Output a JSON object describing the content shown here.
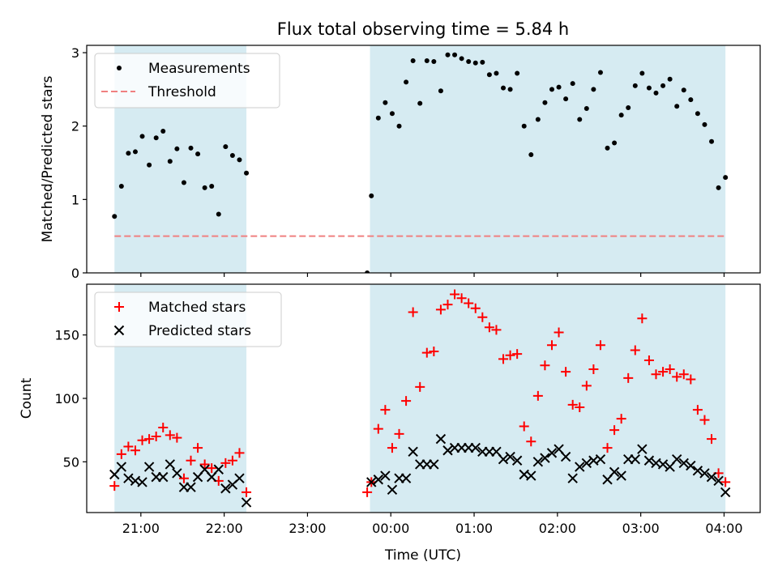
{
  "figure": {
    "title": "Flux total observing time = 5.84 h",
    "xlabel": "Time (UTC)"
  },
  "colors": {
    "shade": "#add8e6",
    "measure": "#000000",
    "threshold": "#f08080",
    "matched": "#ff0000",
    "predicted": "#000000"
  },
  "chart_data": [
    {
      "type": "scatter",
      "ylabel": "Matched/Predicted stars",
      "xlim": [
        "20:21",
        "04:26"
      ],
      "ylim": [
        0,
        3.1
      ],
      "yticks": [
        0,
        1,
        2,
        3
      ],
      "xticks": [
        "21:00",
        "22:00",
        "23:00",
        "00:00",
        "01:00",
        "02:00",
        "03:00",
        "04:00"
      ],
      "xtick_labels_shown": false,
      "legend": {
        "placement": "upper-left",
        "entries": [
          "Measurements",
          "Threshold"
        ]
      },
      "shaded_intervals": [
        [
          "20:41",
          "22:16"
        ],
        [
          "23:45",
          "04:01"
        ]
      ],
      "threshold": {
        "name": "Threshold",
        "y": 0.5,
        "x_range": [
          "20:41",
          "04:01"
        ]
      },
      "series": [
        {
          "name": "Measurements",
          "marker": "dot",
          "x": [
            "20:41",
            "20:46",
            "20:51",
            "20:56",
            "21:01",
            "21:06",
            "21:11",
            "21:16",
            "21:21",
            "21:26",
            "21:31",
            "21:36",
            "21:41",
            "21:46",
            "21:51",
            "21:56",
            "22:01",
            "22:06",
            "22:11",
            "22:16",
            "23:43",
            "23:46",
            "23:51",
            "23:56",
            "24:01",
            "24:06",
            "24:11",
            "24:16",
            "24:21",
            "24:26",
            "24:31",
            "24:36",
            "24:41",
            "24:46",
            "24:51",
            "24:56",
            "25:01",
            "25:06",
            "25:11",
            "25:16",
            "25:21",
            "25:26",
            "25:31",
            "25:36",
            "25:41",
            "25:46",
            "25:51",
            "25:56",
            "26:01",
            "26:06",
            "26:11",
            "26:16",
            "26:21",
            "26:26",
            "26:31",
            "26:36",
            "26:41",
            "26:46",
            "26:51",
            "26:56",
            "27:01",
            "27:06",
            "27:11",
            "27:16",
            "27:21",
            "27:26",
            "27:31",
            "27:36",
            "27:41",
            "27:46",
            "27:51",
            "27:56",
            "28:01"
          ],
          "y": [
            0.77,
            1.18,
            1.63,
            1.65,
            1.86,
            1.47,
            1.84,
            1.93,
            1.52,
            1.69,
            1.23,
            1.7,
            1.62,
            1.16,
            1.18,
            0.8,
            1.72,
            1.6,
            1.54,
            1.36,
            0.0,
            1.05,
            2.11,
            2.32,
            2.17,
            2.0,
            2.6,
            2.89,
            2.31,
            2.89,
            2.88,
            2.48,
            2.97,
            2.97,
            2.92,
            2.88,
            2.86,
            2.87,
            2.7,
            2.72,
            2.52,
            2.5,
            2.72,
            2.0,
            1.61,
            2.09,
            2.32,
            2.5,
            2.53,
            2.37,
            2.58,
            2.09,
            2.24,
            2.5,
            2.73,
            1.7,
            1.77,
            2.15,
            2.25,
            2.55,
            2.72,
            2.52,
            2.45,
            2.55,
            2.64,
            2.27,
            2.49,
            2.36,
            2.17,
            2.02,
            1.79,
            1.16,
            1.3
          ]
        }
      ]
    },
    {
      "type": "scatter",
      "ylabel": "Count",
      "xlim": [
        "20:21",
        "04:26"
      ],
      "ylim": [
        10,
        190
      ],
      "yticks": [
        50,
        100,
        150
      ],
      "xticks": [
        "21:00",
        "22:00",
        "23:00",
        "00:00",
        "01:00",
        "02:00",
        "03:00",
        "04:00"
      ],
      "legend": {
        "placement": "upper-left",
        "entries": [
          "Matched stars",
          "Predicted stars"
        ]
      },
      "shaded_intervals": [
        [
          "20:41",
          "22:16"
        ],
        [
          "23:45",
          "04:01"
        ]
      ],
      "series": [
        {
          "name": "Matched stars",
          "marker": "plus",
          "x": [
            "20:41",
            "20:46",
            "20:51",
            "20:56",
            "21:01",
            "21:06",
            "21:11",
            "21:16",
            "21:21",
            "21:26",
            "21:31",
            "21:36",
            "21:41",
            "21:46",
            "21:51",
            "21:56",
            "22:01",
            "22:06",
            "22:11",
            "22:16",
            "23:43",
            "23:46",
            "23:51",
            "23:56",
            "24:01",
            "24:06",
            "24:11",
            "24:16",
            "24:21",
            "24:26",
            "24:31",
            "24:36",
            "24:41",
            "24:46",
            "24:51",
            "24:56",
            "25:01",
            "25:06",
            "25:11",
            "25:16",
            "25:21",
            "25:26",
            "25:31",
            "25:36",
            "25:41",
            "25:46",
            "25:51",
            "25:56",
            "26:01",
            "26:06",
            "26:11",
            "26:16",
            "26:21",
            "26:26",
            "26:31",
            "26:36",
            "26:41",
            "26:46",
            "26:51",
            "26:56",
            "27:01",
            "27:06",
            "27:11",
            "27:16",
            "27:21",
            "27:26",
            "27:31",
            "27:36",
            "27:41",
            "27:46",
            "27:51",
            "27:56",
            "28:01"
          ],
          "y": [
            31,
            56,
            62,
            59,
            67,
            68,
            70,
            77,
            71,
            69,
            37,
            51,
            61,
            48,
            45,
            35,
            49,
            51,
            57,
            26,
            26,
            34,
            76,
            91,
            61,
            72,
            98,
            168,
            109,
            136,
            137,
            170,
            174,
            182,
            179,
            175,
            171,
            164,
            156,
            154,
            131,
            134,
            135,
            78,
            66,
            102,
            126,
            142,
            152,
            121,
            95,
            93,
            110,
            123,
            142,
            61,
            75,
            84,
            116,
            138,
            163,
            130,
            119,
            121,
            123,
            117,
            119,
            115,
            91,
            83,
            68,
            41,
            34
          ]
        },
        {
          "name": "Predicted stars",
          "marker": "x",
          "x": [
            "20:41",
            "20:46",
            "20:51",
            "20:56",
            "21:01",
            "21:06",
            "21:11",
            "21:16",
            "21:21",
            "21:26",
            "21:31",
            "21:36",
            "21:41",
            "21:46",
            "21:51",
            "21:56",
            "22:01",
            "22:06",
            "22:11",
            "22:16",
            "23:46",
            "23:51",
            "23:56",
            "24:01",
            "24:06",
            "24:11",
            "24:16",
            "24:21",
            "24:26",
            "24:31",
            "24:36",
            "24:41",
            "24:46",
            "24:51",
            "24:56",
            "25:01",
            "25:06",
            "25:11",
            "25:16",
            "25:21",
            "25:26",
            "25:31",
            "25:36",
            "25:41",
            "25:46",
            "25:51",
            "25:56",
            "26:01",
            "26:06",
            "26:11",
            "26:16",
            "26:21",
            "26:26",
            "26:31",
            "26:36",
            "26:41",
            "26:46",
            "26:51",
            "26:56",
            "27:01",
            "27:06",
            "27:11",
            "27:16",
            "27:21",
            "27:26",
            "27:31",
            "27:36",
            "27:41",
            "27:46",
            "27:51",
            "27:56",
            "28:01"
          ],
          "y": [
            40,
            46,
            37,
            35,
            34,
            46,
            38,
            38,
            48,
            41,
            30,
            30,
            38,
            44,
            38,
            44,
            29,
            32,
            37,
            18,
            34,
            36,
            39,
            28,
            37,
            37,
            58,
            48,
            48,
            48,
            68,
            59,
            61,
            61,
            61,
            61,
            58,
            58,
            58,
            52,
            54,
            51,
            40,
            39,
            50,
            53,
            57,
            60,
            54,
            37,
            46,
            49,
            51,
            52,
            36,
            42,
            39,
            52,
            52,
            60,
            51,
            49,
            48,
            46,
            52,
            49,
            47,
            43,
            41,
            38,
            35,
            26
          ]
        }
      ]
    }
  ]
}
